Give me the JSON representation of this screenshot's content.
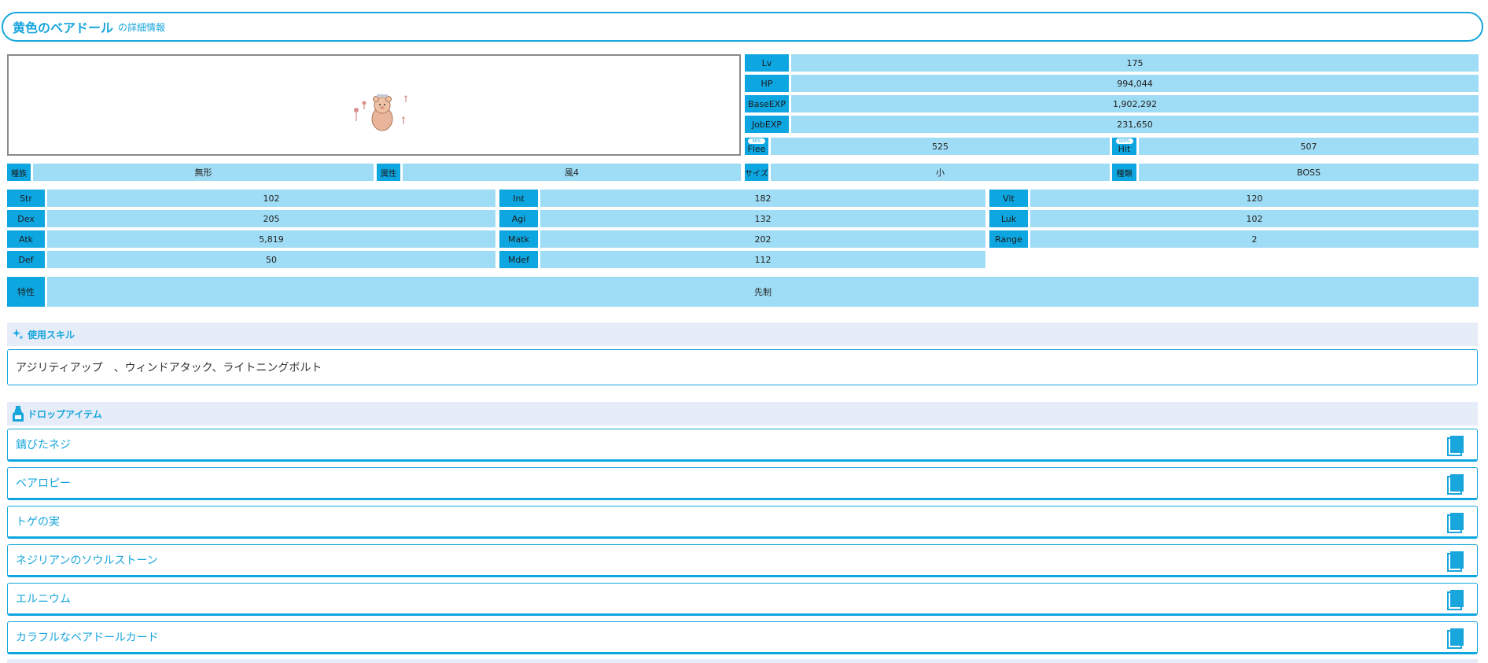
{
  "title": {
    "name": "黄色のベアドール",
    "suffix": "の詳細情報"
  },
  "stats_right": [
    {
      "label": "Lv",
      "value": "175"
    },
    {
      "label": "HP",
      "value": "994,044"
    },
    {
      "label": "BaseEXP",
      "value": "1,902,292"
    },
    {
      "label": "JobEXP",
      "value": "231,650"
    }
  ],
  "flee": {
    "label": "Flee",
    "badge": "95%",
    "value": "525"
  },
  "hit": {
    "label": "Hit",
    "badge": "100%",
    "value": "507"
  },
  "attrs": [
    {
      "label": "種族",
      "value": "無形"
    },
    {
      "label": "属性",
      "value": "風4"
    },
    {
      "label": "サイズ",
      "value": "小"
    },
    {
      "label": "種類",
      "value": "BOSS"
    }
  ],
  "stats": [
    {
      "label": "Str",
      "value": "102"
    },
    {
      "label": "Int",
      "value": "182"
    },
    {
      "label": "Vit",
      "value": "120"
    },
    {
      "label": "Dex",
      "value": "205"
    },
    {
      "label": "Agi",
      "value": "132"
    },
    {
      "label": "Luk",
      "value": "102"
    },
    {
      "label": "Atk",
      "value": "5,819"
    },
    {
      "label": "Matk",
      "value": "202"
    },
    {
      "label": "Range",
      "value": "2"
    },
    {
      "label": "Def",
      "value": "50"
    },
    {
      "label": "Mdef",
      "value": "112"
    }
  ],
  "trait": {
    "label": "特性",
    "value": "先制"
  },
  "skills": {
    "heading": "使用スキル",
    "text": "アジリティアップ　、ウィンドアタック、ライトニングボルト"
  },
  "drops": {
    "heading": "ドロップアイテム",
    "items": [
      "錆びたネジ",
      "ベアロピー",
      "トゲの実",
      "ネジリアンのソウルストーン",
      "エルニウム",
      "カラフルなベアドールカード"
    ]
  },
  "colors": {
    "accent": "#18a6dc",
    "label_bg": "#0ea6e0",
    "value_bg": "#9fdcf5",
    "section_bg": "#e6edf9"
  }
}
